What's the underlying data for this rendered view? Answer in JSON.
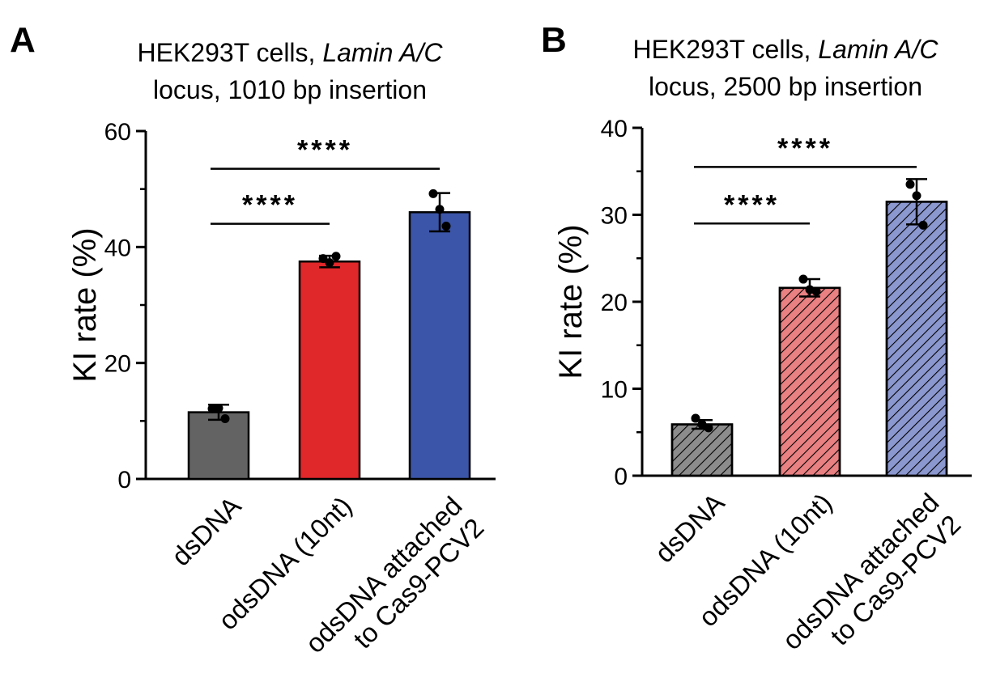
{
  "chart_data": [
    {
      "type": "bar",
      "panel_label": "A",
      "title_line1_prefix": "HEK293T cells, ",
      "title_line1_italic": "Lamin A/C",
      "title_line2": "locus, 1010 bp insertion",
      "ylabel": "KI rate (%)",
      "xlabel": "",
      "ylim": [
        0,
        60
      ],
      "yticks": [
        0,
        20,
        40,
        60
      ],
      "ytick_labels": [
        "0",
        "20",
        "40",
        "60"
      ],
      "categories": [
        "dsDNA",
        "odsDNA (10nt)",
        "odsDNA attached to Cas9-PCV2"
      ],
      "category_lines": [
        [
          "dsDNA"
        ],
        [
          "odsDNA (10nt)"
        ],
        [
          "odsDNA attached",
          "to Cas9-PCV2"
        ]
      ],
      "values": [
        11.5,
        37.5,
        46
      ],
      "errors": [
        1.3,
        1.0,
        3.3
      ],
      "points": [
        [
          12.1,
          12.2,
          10.4
        ],
        [
          38.0,
          37.3,
          38.4
        ],
        [
          49.2,
          46.5,
          43.6
        ]
      ],
      "colors": [
        "#636363",
        "#e0272a",
        "#3b55a8"
      ],
      "hatched": false,
      "significance": [
        {
          "from": 0,
          "to": 1,
          "label": "****",
          "y": 44
        },
        {
          "from": 0,
          "to": 2,
          "label": "****",
          "y": 53.5
        }
      ]
    },
    {
      "type": "bar",
      "panel_label": "B",
      "title_line1_prefix": "HEK293T cells, ",
      "title_line1_italic": "Lamin A/C",
      "title_line2": "locus, 2500 bp insertion",
      "ylabel": "KI rate (%)",
      "xlabel": "",
      "ylim": [
        0,
        40
      ],
      "yticks": [
        0,
        10,
        20,
        30,
        40
      ],
      "ytick_labels": [
        "0",
        "10",
        "20",
        "30",
        "40"
      ],
      "categories": [
        "dsDNA",
        "odsDNA (10nt)",
        "odsDNA attached to Cas9-PCV2"
      ],
      "category_lines": [
        [
          "dsDNA"
        ],
        [
          "odsDNA (10nt)"
        ],
        [
          "odsDNA attached",
          "to Cas9-PCV2"
        ]
      ],
      "values": [
        5.9,
        21.6,
        31.5
      ],
      "errors": [
        0.5,
        1.0,
        2.6
      ],
      "points": [
        [
          6.6,
          5.9,
          5.5
        ],
        [
          22.6,
          21.4,
          21.2
        ],
        [
          33.5,
          32.2,
          28.8
        ]
      ],
      "colors": [
        "#8c8c8c",
        "#e98082",
        "#8b97cf"
      ],
      "hatched": true,
      "significance": [
        {
          "from": 0,
          "to": 1,
          "label": "****",
          "y": 29.0
        },
        {
          "from": 0,
          "to": 2,
          "label": "****",
          "y": 35.5
        }
      ]
    }
  ]
}
